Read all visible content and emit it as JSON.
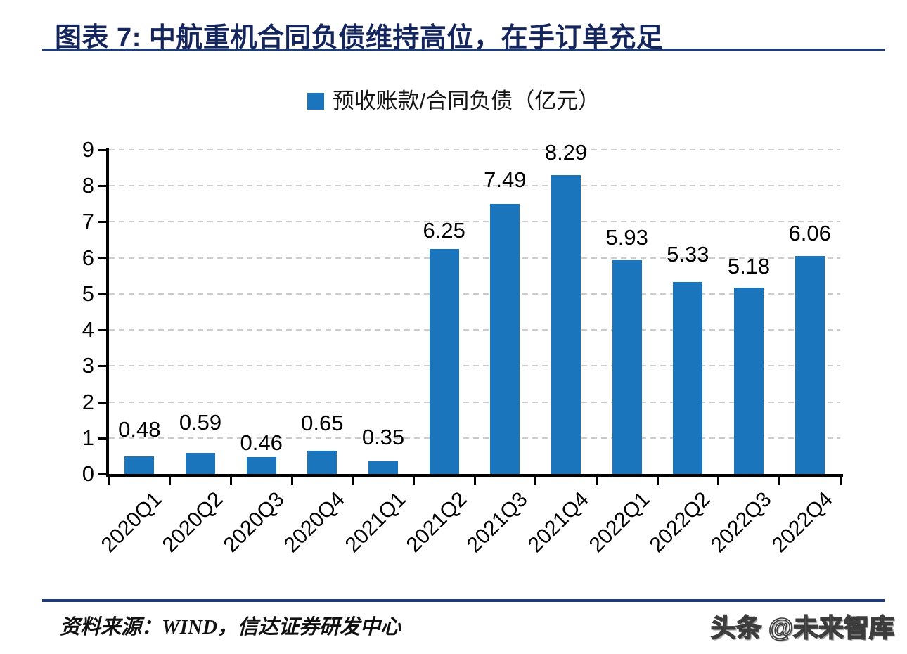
{
  "header": {
    "title": "图表 7:  中航重机合同负债维持高位，在手订单充足"
  },
  "legend": {
    "label": "预收账款/合同负债（亿元）"
  },
  "chart_data": {
    "type": "bar",
    "title": "",
    "legend": "预收账款/合同负债（亿元）",
    "categories": [
      "2020Q1",
      "2020Q2",
      "2020Q3",
      "2020Q4",
      "2021Q1",
      "2021Q2",
      "2021Q3",
      "2021Q4",
      "2022Q1",
      "2022Q2",
      "2022Q3",
      "2022Q4"
    ],
    "values": [
      0.48,
      0.59,
      0.46,
      0.65,
      0.35,
      6.25,
      7.49,
      8.29,
      5.93,
      5.33,
      5.18,
      6.06
    ],
    "xlabel": "",
    "ylabel": "",
    "ylim": [
      0,
      9
    ],
    "yticks": [
      0,
      1,
      2,
      3,
      4,
      5,
      6,
      7,
      8,
      9
    ],
    "grid": "horizontal-dashed",
    "legend_position": "top-center",
    "bar_labels_shown": true
  },
  "footer": {
    "source": "资料来源：WIND，信达证券研发中心",
    "watermark": "头条 @未来智库"
  },
  "colors": {
    "bar": "#1b75bc",
    "title": "#15265d",
    "rule": "#1f3c78",
    "grid": "#cccccc",
    "axis": "#000000",
    "label": "#000000"
  }
}
